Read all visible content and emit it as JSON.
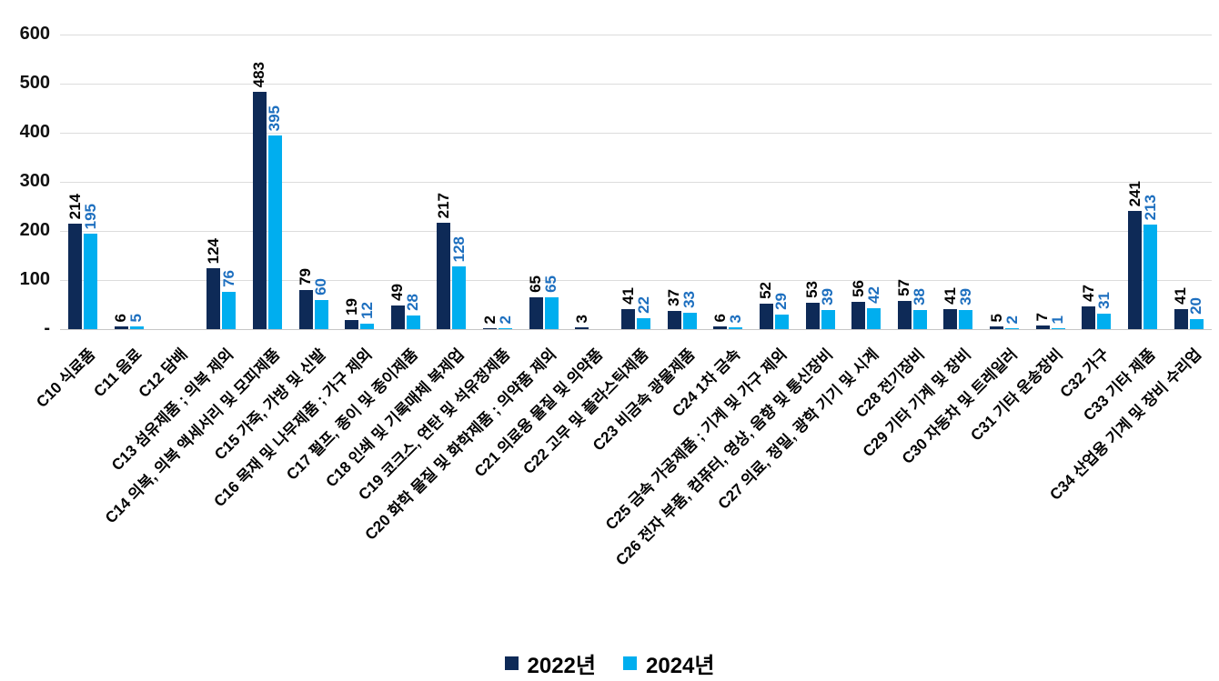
{
  "chart_data": {
    "type": "bar",
    "title": "",
    "xlabel": "",
    "ylabel": "",
    "ylim": [
      0,
      600
    ],
    "grid": "horizontal",
    "legend_position": "bottom",
    "yticks": [
      {
        "value": 600,
        "label": "600"
      },
      {
        "value": 500,
        "label": "500"
      },
      {
        "value": 400,
        "label": "400"
      },
      {
        "value": 300,
        "label": "300"
      },
      {
        "value": 200,
        "label": "200"
      },
      {
        "value": 100,
        "label": "100"
      },
      {
        "value": 0,
        "label": "-"
      }
    ],
    "categories": [
      "C10 식료품",
      "C11 음료",
      "C12 담배",
      "C13 섬유제품 ; 의복 제외",
      "C14 의복, 의복 액세서리 및 모피제품",
      "C15 가죽, 가방 및 신발",
      "C16 목재 및 나무제품 ; 가구 제외",
      "C17 펄프, 종이 및 종이제품",
      "C18 인쇄 및 기록매체 복제업",
      "C19 코크스, 연탄 및 석유정제품",
      "C20 화학 물질 및 화학제품 ; 의약품 제외",
      "C21 의료용 물질 및 의약품",
      "C22 고무 및 플라스틱제품",
      "C23 비금속 광물제품",
      "C24 1차 금속",
      "C25 금속 가공제품 ; 기계 및 가구 제외",
      "C26 전자 부품, 컴퓨터, 영상, 음향 및 통신장비",
      "C27 의료, 정밀, 광학 기기 및 시계",
      "C28 전기장비",
      "C29 기타 기계 및 장비",
      "C30 자동차 및 트레일러",
      "C31 기타 운송장비",
      "C32 가구",
      "C33 기타 제품",
      "C34 산업용 기계 및 장비 수리업"
    ],
    "series": [
      {
        "name": "2022년",
        "color": "#0e2a57",
        "label_color": "#000000",
        "values": [
          214,
          6,
          null,
          124,
          483,
          79,
          19,
          49,
          217,
          2,
          65,
          3,
          41,
          37,
          6,
          52,
          53,
          56,
          57,
          41,
          5,
          7,
          47,
          241,
          41
        ]
      },
      {
        "name": "2024년",
        "color": "#00aeef",
        "label_color": "#1d6fbf",
        "values": [
          195,
          5,
          null,
          76,
          395,
          60,
          12,
          28,
          128,
          2,
          65,
          null,
          22,
          33,
          3,
          29,
          39,
          42,
          38,
          39,
          2,
          1,
          31,
          213,
          20
        ]
      }
    ]
  },
  "colors": {
    "background": "#ffffff",
    "gridline": "#dcdcdc",
    "axis_text": "#111111"
  }
}
